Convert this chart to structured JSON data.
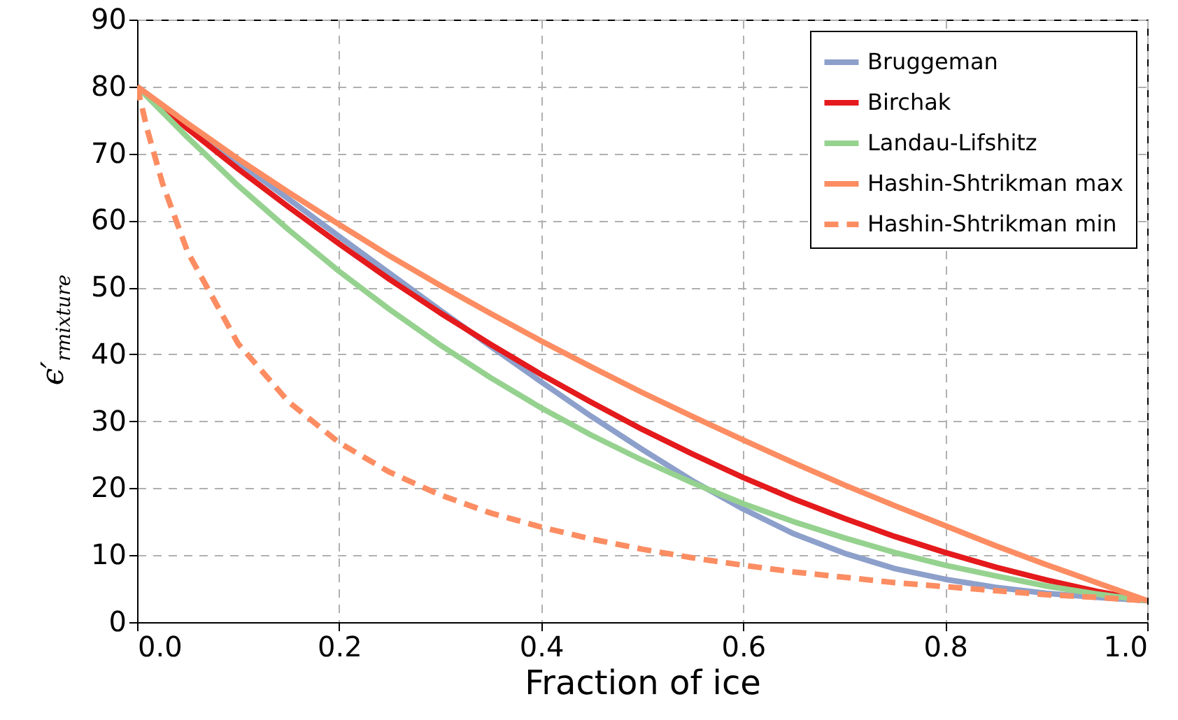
{
  "chart_data": {
    "type": "line",
    "xlabel": "Fraction of ice",
    "ylabel": "ϵ′$_{rmixture}$",
    "x": [
      0,
      0.05,
      0.1,
      0.15,
      0.2,
      0.25,
      0.3,
      0.35,
      0.4,
      0.45,
      0.5,
      0.55,
      0.6,
      0.65,
      0.7,
      0.75,
      0.8,
      0.85,
      0.9,
      0.95,
      1
    ],
    "series": [
      {
        "name": "Bruggeman",
        "color": "#8da0cb",
        "line_style": "solid",
        "values": [
          80,
          74.4,
          68.7,
          63.2,
          57.6,
          52.1,
          46.6,
          41.2,
          35.9,
          30.7,
          25.8,
          21.1,
          16.9,
          13.2,
          10.3,
          8,
          6.4,
          5.2,
          4.3,
          3.7,
          3.2
        ]
      },
      {
        "name": "Birchak",
        "color": "#e41a1c",
        "line_style": "solid",
        "values": [
          80,
          73.7,
          67.7,
          62,
          56.5,
          51.2,
          46.2,
          41.5,
          37,
          32.8,
          28.8,
          25.1,
          21.6,
          18.4,
          15.5,
          12.8,
          10.4,
          8.2,
          6.3,
          4.6,
          3.2
        ]
      },
      {
        "name": "Landau-Lifshitz",
        "color": "#96d28f",
        "line_style": "solid",
        "values": [
          80,
          72.4,
          65.2,
          58.6,
          52.4,
          46.7,
          41.4,
          36.5,
          32,
          27.9,
          24.2,
          20.8,
          17.7,
          15,
          12.6,
          10.4,
          8.5,
          6.9,
          5.4,
          4.2,
          3.2
        ]
      },
      {
        "name": "Hashin-Shtrikman max",
        "color": "#fc8d62",
        "line_style": "solid",
        "values": [
          80,
          74.5,
          69.2,
          64.2,
          59.4,
          54.7,
          50.3,
          46.1,
          42,
          38.1,
          34.3,
          30.7,
          27.2,
          23.8,
          20.5,
          17.4,
          14.4,
          11.4,
          8.6,
          5.9,
          3.2
        ]
      },
      {
        "name": "Hashin-Shtrikman min",
        "color": "#fc8d62",
        "line_style": "dashed",
        "x": [
          0,
          0.01,
          0.025,
          0.05,
          0.1,
          0.15,
          0.2,
          0.25,
          0.3,
          0.35,
          0.4,
          0.45,
          0.5,
          0.55,
          0.6,
          0.65,
          0.7,
          0.75,
          0.8,
          0.85,
          0.9,
          0.95,
          1
        ],
        "values": [
          80,
          73.6,
          65.6,
          55.3,
          41.6,
          32.9,
          26.8,
          22.4,
          19,
          16.3,
          14.2,
          12.4,
          10.9,
          9.6,
          8.5,
          7.5,
          6.7,
          5.9,
          5.3,
          4.7,
          4.1,
          3.7,
          3.2
        ]
      }
    ],
    "xlim": [
      0,
      1
    ],
    "xticks": [
      {
        "value": 0,
        "label": "0.0"
      },
      0.2,
      0.4,
      0.6,
      0.8,
      {
        "value": 1,
        "label": "1.0"
      }
    ],
    "ylim": [
      0,
      90
    ],
    "yticks": [
      0,
      10,
      20,
      30,
      40,
      50,
      60,
      70,
      80,
      90
    ],
    "grid": true,
    "legend": "top right"
  }
}
